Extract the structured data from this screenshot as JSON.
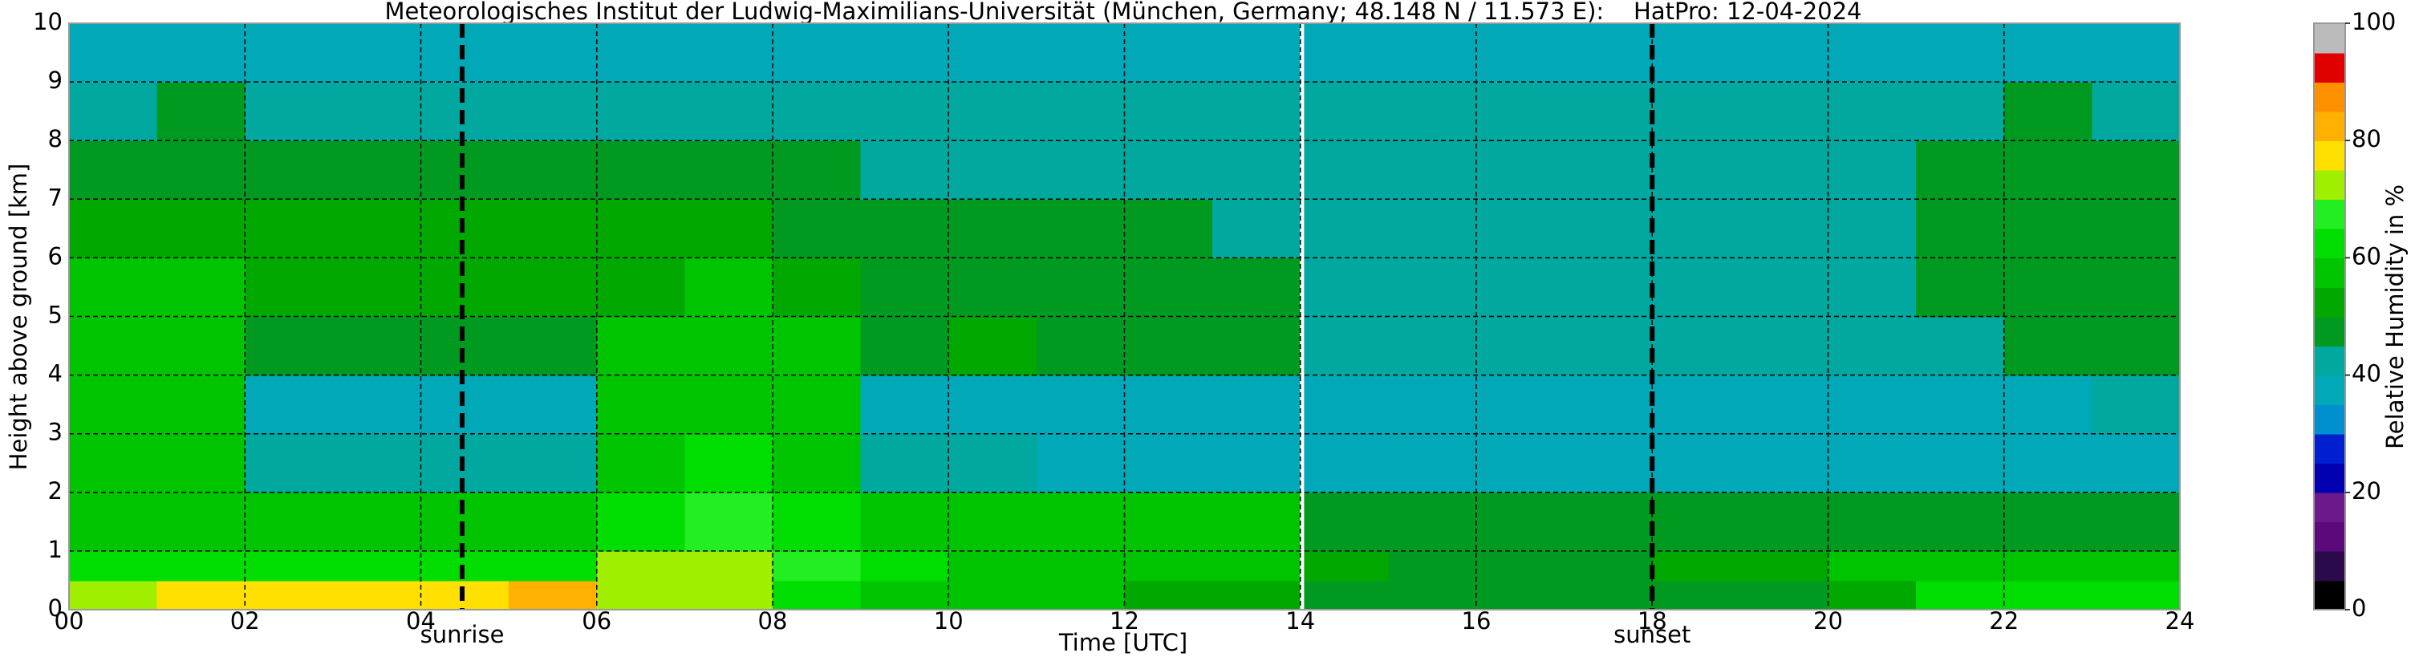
{
  "chart_data": {
    "type": "heatmap",
    "title": "Meteorologisches Institut der Ludwig-Maximilians-Universität (München, Germany; 48.148 N / 11.573 E):    HatPro: 12-04-2024",
    "xlabel": "Time [UTC]",
    "ylabel": "Height above ground [km]",
    "colorbar_label": "Relative Humidity in %",
    "xlim": [
      0,
      24
    ],
    "ylim": [
      0,
      10
    ],
    "xticks": [
      {
        "value": 0,
        "label": "00"
      },
      {
        "value": 2,
        "label": "02"
      },
      {
        "value": 4,
        "label": "04"
      },
      {
        "value": 6,
        "label": "06"
      },
      {
        "value": 8,
        "label": "08"
      },
      10,
      12,
      14,
      16,
      18,
      20,
      22,
      24
    ],
    "yticks": [
      0,
      1,
      2,
      3,
      4,
      5,
      6,
      7,
      8,
      9,
      10
    ],
    "grid": true,
    "zlim": [
      0,
      100
    ],
    "zticks": [
      0,
      20,
      40,
      60,
      80,
      100
    ],
    "colors": [
      "#000000",
      "#2a0a4a",
      "#5a0a7a",
      "#6a1a8a",
      "#0000b0",
      "#0020d0",
      "#0090d0",
      "#00a8b8",
      "#00a8a0",
      "#009a20",
      "#00a800",
      "#00c400",
      "#00dd00",
      "#22ee22",
      "#a0ee00",
      "#ffe000",
      "#ffb000",
      "#ff9000",
      "#e00000",
      "#bbbbbb"
    ],
    "markers": [
      {
        "label": "sunrise",
        "x": 4.47
      },
      {
        "label": "sunset",
        "x": 18.0
      }
    ],
    "data_gap_x": 14.02,
    "xbins": [
      0,
      1,
      2,
      3,
      4,
      5,
      6,
      7,
      8,
      9,
      10,
      11,
      12,
      13,
      14,
      15,
      16,
      17,
      18,
      19,
      20,
      21,
      22,
      23,
      24
    ],
    "ybins": [
      0,
      0.5,
      1,
      2,
      3,
      4,
      5,
      6,
      7,
      8,
      9,
      10
    ],
    "z": [
      [
        72,
        75,
        75,
        75,
        78,
        80,
        72,
        70,
        62,
        58,
        57,
        55,
        52,
        50,
        48,
        45,
        45,
        45,
        47,
        48,
        50,
        62,
        64,
        64
      ],
      [
        62,
        62,
        60,
        60,
        60,
        62,
        70,
        72,
        66,
        60,
        58,
        57,
        56,
        55,
        50,
        48,
        48,
        48,
        50,
        52,
        55,
        57,
        57,
        57
      ],
      [
        58,
        57,
        56,
        56,
        56,
        58,
        64,
        66,
        62,
        58,
        58,
        57,
        57,
        56,
        48,
        47,
        47,
        47,
        48,
        48,
        48,
        48,
        48,
        48
      ],
      [
        58,
        56,
        40,
        40,
        40,
        40,
        56,
        60,
        58,
        40,
        40,
        38,
        38,
        38,
        38,
        38,
        38,
        38,
        38,
        38,
        38,
        38,
        38,
        38
      ],
      [
        58,
        56,
        38,
        38,
        38,
        38,
        56,
        58,
        58,
        38,
        38,
        38,
        38,
        38,
        38,
        38,
        38,
        38,
        38,
        38,
        38,
        38,
        38,
        40
      ],
      [
        56,
        57,
        48,
        47,
        47,
        48,
        55,
        56,
        55,
        49,
        50,
        48,
        46,
        46,
        40,
        40,
        40,
        40,
        40,
        40,
        40,
        44,
        46,
        46
      ],
      [
        55,
        56,
        50,
        50,
        50,
        50,
        54,
        55,
        52,
        48,
        49,
        48,
        46,
        45,
        40,
        41,
        40,
        40,
        40,
        40,
        40,
        45,
        47,
        47
      ],
      [
        52,
        54,
        50,
        50,
        50,
        50,
        52,
        50,
        48,
        47,
        47,
        46,
        45,
        44,
        40,
        40,
        40,
        40,
        40,
        40,
        40,
        45,
        47,
        47
      ],
      [
        48,
        48,
        47,
        47,
        47,
        47,
        48,
        48,
        45,
        44,
        44,
        43,
        42,
        42,
        40,
        40,
        40,
        40,
        40,
        40,
        40,
        45,
        47,
        47
      ],
      [
        44,
        46,
        44,
        44,
        44,
        44,
        44,
        43,
        42,
        41,
        41,
        41,
        41,
        41,
        40,
        40,
        40,
        40,
        40,
        40,
        40,
        42,
        45,
        44
      ],
      [
        38,
        38,
        38,
        38,
        38,
        38,
        38,
        38,
        36,
        37,
        37,
        38,
        38,
        38,
        38,
        38,
        38,
        38,
        38,
        38,
        38,
        38,
        38,
        38
      ]
    ]
  }
}
